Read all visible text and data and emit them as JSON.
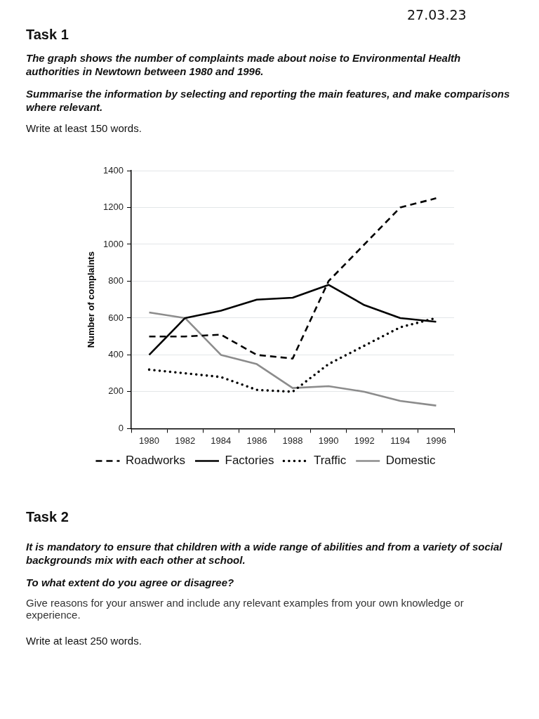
{
  "chart_data": {
    "type": "line",
    "annotations": [
      "27.03.23",
      "Task 1",
      "The graph shows the number of complaints made about noise to Environmental Health authorities in Newtown between 1980 and 1996.",
      "Summarise the information by selecting and reporting the main features, and make comparisons where relevant.",
      "Write at least 150 words.",
      "Task 2",
      "It is mandatory to ensure that children with a wide range of abilities and from a variety of social backgrounds mix with each other at school.",
      "To what extent do you agree or disagree?",
      "Give reasons for your answer and include any relevant examples from your own knowledge or experience.",
      "Write at least 250 words."
    ],
    "ylabel": "Number of complaints",
    "categories": [
      "1980",
      "1982",
      "1984",
      "1986",
      "1988",
      "1990",
      "1992",
      "1194",
      "1996"
    ],
    "series": [
      {
        "name": "Roadworks",
        "color": "#000000",
        "line_style": "dashed",
        "values": [
          500,
          500,
          510,
          400,
          380,
          800,
          1000,
          1200,
          1250
        ]
      },
      {
        "name": "Factories",
        "color": "#000000",
        "line_style": "solid",
        "values": [
          400,
          600,
          640,
          700,
          710,
          780,
          670,
          600,
          580
        ]
      },
      {
        "name": "Traffic",
        "color": "#000000",
        "line_style": "dotted",
        "values": [
          320,
          300,
          280,
          210,
          200,
          350,
          450,
          550,
          600
        ]
      },
      {
        "name": "Domestic",
        "color": "#8c8c8c",
        "line_style": "solid",
        "values": [
          630,
          600,
          400,
          350,
          220,
          230,
          200,
          150,
          125
        ]
      }
    ],
    "ylim": [
      0,
      1400
    ],
    "yticks": [
      0,
      200,
      400,
      600,
      800,
      1000,
      1200,
      1400
    ],
    "grid": "y",
    "legend": "bottom",
    "marker": "none"
  }
}
